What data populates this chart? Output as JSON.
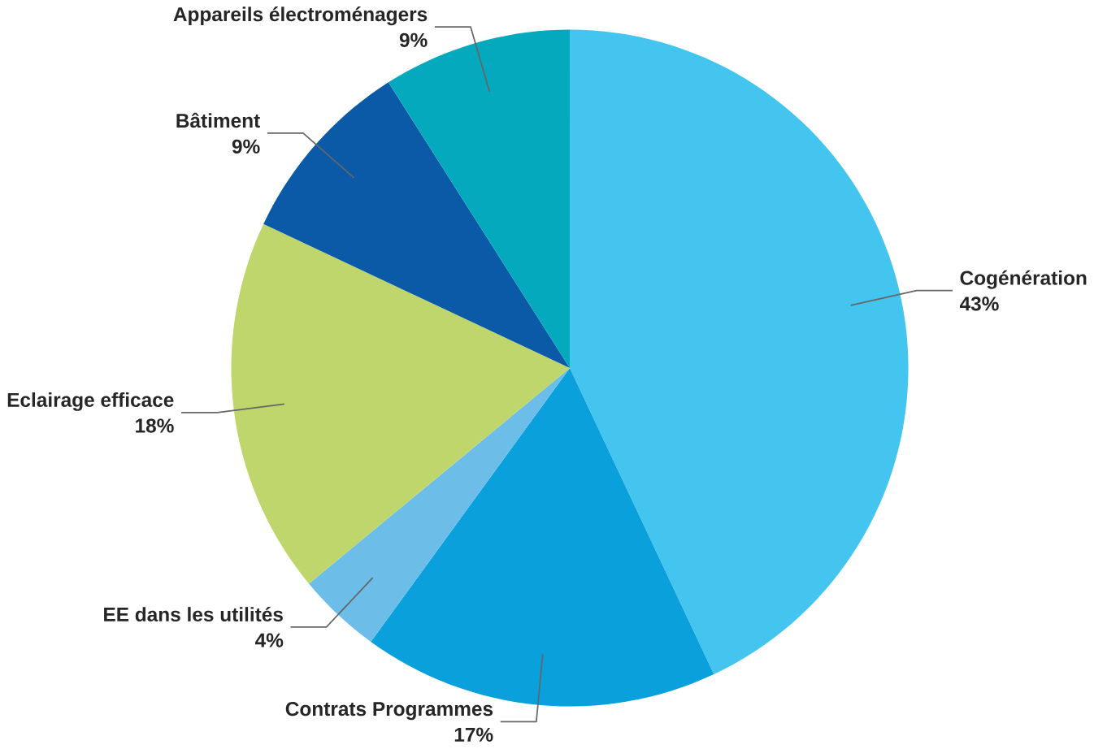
{
  "chart_data": {
    "type": "pie",
    "categories": [
      "Cogénération",
      "Contrats Programmes",
      "EE dans les utilités",
      "Eclairage efficace",
      "Bâtiment",
      "Appareils électroménagers"
    ],
    "values": [
      43,
      17,
      4,
      18,
      9,
      9
    ],
    "value_labels": [
      "43%",
      "17%",
      "4%",
      "18%",
      "9%",
      "9%"
    ],
    "colors": [
      "#44c5ef",
      "#0aa0dc",
      "#6dbde9",
      "#bed66b",
      "#0b5aa8",
      "#04a9be"
    ]
  }
}
